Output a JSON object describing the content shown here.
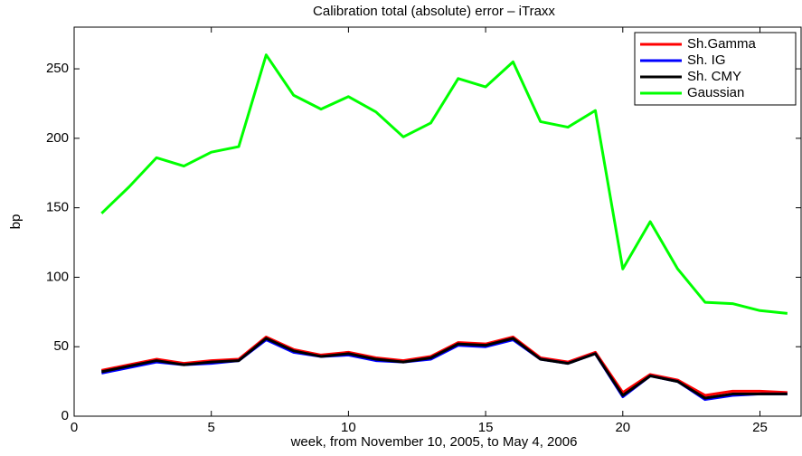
{
  "chart_data": {
    "type": "line",
    "title": "Calibration total (absolute) error – iTraxx",
    "x_label": "week, from November 10, 2005, to May 4, 2006",
    "y_label": "bp",
    "x": [
      1,
      2,
      3,
      4,
      5,
      6,
      7,
      8,
      9,
      10,
      11,
      12,
      13,
      14,
      15,
      16,
      17,
      18,
      19,
      20,
      21,
      22,
      23,
      24,
      25,
      26
    ],
    "series": [
      {
        "name": "Sh.Gamma",
        "color": "#ff0000",
        "values": [
          33,
          37,
          41,
          38,
          40,
          41,
          57,
          48,
          44,
          46,
          42,
          40,
          43,
          53,
          52,
          57,
          42,
          39,
          46,
          17,
          30,
          26,
          15,
          18,
          18,
          17
        ]
      },
      {
        "name": "Sh. IG",
        "color": "#0000ff",
        "values": [
          31,
          35,
          39,
          37,
          38,
          40,
          55,
          46,
          43,
          44,
          40,
          39,
          41,
          51,
          50,
          55,
          41,
          38,
          45,
          14,
          29,
          25,
          12,
          15,
          16,
          16
        ]
      },
      {
        "name": "Sh. CMY",
        "color": "#000000",
        "values": [
          32,
          36,
          40,
          37,
          39,
          40,
          56,
          47,
          43,
          45,
          41,
          39,
          42,
          52,
          51,
          56,
          41,
          38,
          45,
          15,
          29,
          25,
          13,
          16,
          16,
          16
        ]
      },
      {
        "name": "Gaussian",
        "color": "#00ff00",
        "values": [
          146,
          165,
          186,
          180,
          190,
          194,
          260,
          231,
          221,
          230,
          219,
          201,
          211,
          243,
          237,
          255,
          212,
          208,
          220,
          106,
          140,
          106,
          82,
          81,
          76,
          74
        ]
      }
    ],
    "xlim": [
      0,
      26.5
    ],
    "xticks": [
      0,
      5,
      10,
      15,
      20,
      25
    ],
    "ylim": [
      0,
      280
    ],
    "yticks": [
      0,
      50,
      100,
      150,
      200,
      250
    ],
    "legend": "upper right"
  }
}
